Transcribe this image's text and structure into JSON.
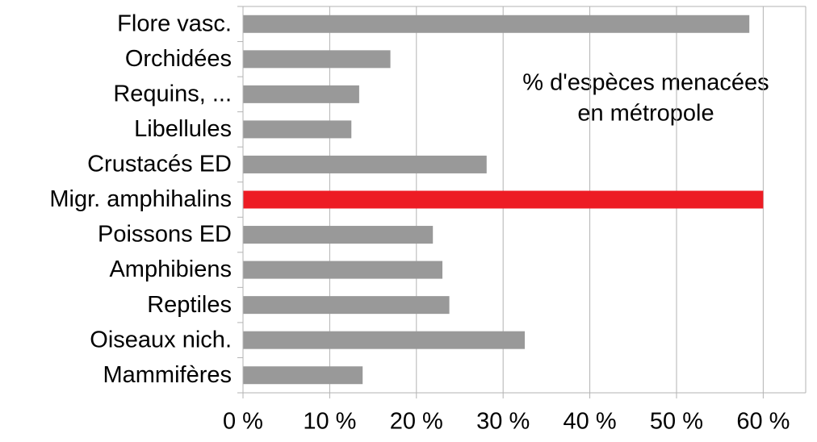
{
  "chart_data": {
    "type": "barh",
    "annotation": [
      "% d'espèces menacées",
      "en métropole"
    ],
    "categories": [
      "Flore vasc.",
      "Orchidées",
      "Requins, ...",
      "Libellules",
      "Crustacés ED",
      "Migr. amphihalins",
      "Poissons ED",
      "Amphibiens",
      "Reptiles",
      "Oiseaux nich.",
      "Mammifères"
    ],
    "values": [
      58.4,
      17.0,
      13.4,
      12.5,
      28.1,
      60.0,
      21.9,
      23.0,
      23.8,
      32.5,
      13.8
    ],
    "colors": [
      "#999999",
      "#999999",
      "#999999",
      "#999999",
      "#999999",
      "#ed1c24",
      "#999999",
      "#999999",
      "#999999",
      "#999999",
      "#999999"
    ],
    "xlim": [
      0,
      64.9
    ],
    "xticks": [
      {
        "value": 0,
        "label": "0 %"
      },
      {
        "value": 10,
        "label": "10 %"
      },
      {
        "value": 20,
        "label": "20 %"
      },
      {
        "value": 30,
        "label": "30 %"
      },
      {
        "value": 40,
        "label": "40 %"
      },
      {
        "value": 50,
        "label": "50 %"
      },
      {
        "value": 60,
        "label": "60 %"
      }
    ],
    "grid": true
  }
}
